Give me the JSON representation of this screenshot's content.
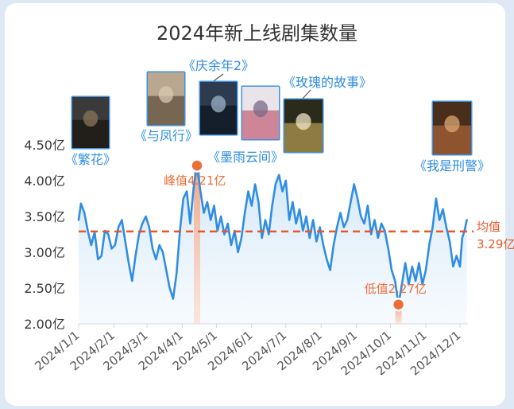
{
  "chart_data": {
    "type": "line",
    "title": "2024年新上线剧集数量",
    "x_ticks": [
      "2024/1/1",
      "2024/2/1",
      "2024/3/1",
      "2024/4/1",
      "2024/5/1",
      "2024/6/1",
      "2024/7/1",
      "2024/8/1",
      "2024/9/1",
      "2024/10/1",
      "2024/11/1",
      "2024/12/1"
    ],
    "y_ticks": [
      "2.00亿",
      "2.50亿",
      "3.00亿",
      "3.50亿",
      "4.00亿",
      "4.50亿"
    ],
    "ylim": [
      2.0,
      4.5
    ],
    "x_range": [
      "2024-01-01",
      "2024-12-08"
    ],
    "series": [
      {
        "color": "#2f8de4",
        "points": [
          [
            "2024-01-01",
            3.45
          ],
          [
            "2024-01-03",
            3.68
          ],
          [
            "2024-01-06",
            3.55
          ],
          [
            "2024-01-09",
            3.3
          ],
          [
            "2024-01-12",
            3.1
          ],
          [
            "2024-01-15",
            3.28
          ],
          [
            "2024-01-18",
            2.9
          ],
          [
            "2024-01-21",
            2.95
          ],
          [
            "2024-01-24",
            3.3
          ],
          [
            "2024-01-27",
            3.25
          ],
          [
            "2024-01-30",
            3.05
          ],
          [
            "2024-02-02",
            3.1
          ],
          [
            "2024-02-05",
            3.35
          ],
          [
            "2024-02-08",
            3.45
          ],
          [
            "2024-02-11",
            3.15
          ],
          [
            "2024-02-14",
            2.85
          ],
          [
            "2024-02-17",
            2.6
          ],
          [
            "2024-02-20",
            2.95
          ],
          [
            "2024-02-23",
            3.25
          ],
          [
            "2024-02-26",
            3.4
          ],
          [
            "2024-02-29",
            3.5
          ],
          [
            "2024-03-03",
            3.35
          ],
          [
            "2024-03-06",
            3.05
          ],
          [
            "2024-03-09",
            2.9
          ],
          [
            "2024-03-12",
            3.1
          ],
          [
            "2024-03-15",
            3.0
          ],
          [
            "2024-03-18",
            2.75
          ],
          [
            "2024-03-21",
            2.5
          ],
          [
            "2024-03-24",
            2.35
          ],
          [
            "2024-03-27",
            2.7
          ],
          [
            "2024-03-30",
            3.3
          ],
          [
            "2024-04-02",
            3.75
          ],
          [
            "2024-04-05",
            3.85
          ],
          [
            "2024-04-08",
            3.4
          ],
          [
            "2024-04-11",
            3.9
          ],
          [
            "2024-04-14",
            4.21
          ],
          [
            "2024-04-17",
            3.85
          ],
          [
            "2024-04-20",
            3.55
          ],
          [
            "2024-04-23",
            3.7
          ],
          [
            "2024-04-26",
            3.45
          ],
          [
            "2024-04-29",
            3.65
          ],
          [
            "2024-05-02",
            3.3
          ],
          [
            "2024-05-05",
            3.5
          ],
          [
            "2024-05-08",
            3.25
          ],
          [
            "2024-05-11",
            3.4
          ],
          [
            "2024-05-14",
            3.1
          ],
          [
            "2024-05-17",
            3.3
          ],
          [
            "2024-05-20",
            3.0
          ],
          [
            "2024-05-23",
            3.2
          ],
          [
            "2024-05-26",
            3.55
          ],
          [
            "2024-05-29",
            3.85
          ],
          [
            "2024-06-01",
            3.65
          ],
          [
            "2024-06-04",
            3.95
          ],
          [
            "2024-06-07",
            3.7
          ],
          [
            "2024-06-10",
            3.2
          ],
          [
            "2024-06-13",
            3.45
          ],
          [
            "2024-06-16",
            3.25
          ],
          [
            "2024-06-19",
            3.65
          ],
          [
            "2024-06-22",
            3.95
          ],
          [
            "2024-06-25",
            4.08
          ],
          [
            "2024-06-28",
            3.85
          ],
          [
            "2024-07-01",
            4.0
          ],
          [
            "2024-07-04",
            3.45
          ],
          [
            "2024-07-07",
            3.7
          ],
          [
            "2024-07-10",
            3.4
          ],
          [
            "2024-07-13",
            3.6
          ],
          [
            "2024-07-16",
            3.3
          ],
          [
            "2024-07-19",
            3.5
          ],
          [
            "2024-07-22",
            3.2
          ],
          [
            "2024-07-25",
            3.45
          ],
          [
            "2024-07-28",
            3.15
          ],
          [
            "2024-07-31",
            3.35
          ],
          [
            "2024-08-03",
            3.1
          ],
          [
            "2024-08-06",
            2.9
          ],
          [
            "2024-08-09",
            2.75
          ],
          [
            "2024-08-12",
            3.1
          ],
          [
            "2024-08-15",
            3.35
          ],
          [
            "2024-08-18",
            3.55
          ],
          [
            "2024-08-21",
            3.35
          ],
          [
            "2024-08-24",
            3.45
          ],
          [
            "2024-08-27",
            3.7
          ],
          [
            "2024-08-30",
            3.95
          ],
          [
            "2024-09-02",
            3.75
          ],
          [
            "2024-09-05",
            3.5
          ],
          [
            "2024-09-08",
            3.4
          ],
          [
            "2024-09-11",
            3.65
          ],
          [
            "2024-09-14",
            3.25
          ],
          [
            "2024-09-17",
            3.45
          ],
          [
            "2024-09-20",
            3.2
          ],
          [
            "2024-09-23",
            3.4
          ],
          [
            "2024-09-26",
            3.3
          ],
          [
            "2024-09-29",
            3.05
          ],
          [
            "2024-10-02",
            2.75
          ],
          [
            "2024-10-05",
            2.6
          ],
          [
            "2024-10-08",
            2.27
          ],
          [
            "2024-10-11",
            2.55
          ],
          [
            "2024-10-14",
            2.85
          ],
          [
            "2024-10-17",
            2.55
          ],
          [
            "2024-10-20",
            2.8
          ],
          [
            "2024-10-23",
            2.6
          ],
          [
            "2024-10-26",
            2.85
          ],
          [
            "2024-10-29",
            2.55
          ],
          [
            "2024-11-01",
            2.75
          ],
          [
            "2024-11-04",
            3.1
          ],
          [
            "2024-11-07",
            3.35
          ],
          [
            "2024-11-10",
            3.75
          ],
          [
            "2024-11-13",
            3.45
          ],
          [
            "2024-11-16",
            3.6
          ],
          [
            "2024-11-19",
            3.35
          ],
          [
            "2024-11-22",
            3.15
          ],
          [
            "2024-11-25",
            2.8
          ],
          [
            "2024-11-28",
            2.95
          ],
          [
            "2024-12-01",
            2.8
          ],
          [
            "2024-12-03",
            3.2
          ],
          [
            "2024-12-05",
            3.3
          ],
          [
            "2024-12-07",
            3.45
          ]
        ]
      }
    ],
    "average": {
      "value": 3.29,
      "label_1": "均值",
      "label_2": "3.29亿",
      "color": "#e8582a"
    },
    "peak": {
      "date": "2024-04-14",
      "value": 4.21,
      "label": "峰值4.21亿",
      "color": "#ec6f3a"
    },
    "trough": {
      "date": "2024-10-08",
      "value": 2.27,
      "label": "低值2.27亿",
      "color": "#ec6f3a"
    },
    "annotations": [
      {
        "id": "fanhua",
        "label": "《繁花》",
        "date": "2024-01-06"
      },
      {
        "id": "yufengxing",
        "label": "《与凤行》",
        "date": "2024-03-18"
      },
      {
        "id": "qingyunian2",
        "label": "《庆余年2》",
        "date": "2024-05-16"
      },
      {
        "id": "moyuyunjian",
        "label": "《墨雨云间》",
        "date": "2024-06-12"
      },
      {
        "id": "meigui",
        "label": "《玫瑰的故事》",
        "date": "2024-07-08"
      },
      {
        "id": "woshixingjing",
        "label": "《我是刑警》",
        "date": "2024-12-02"
      }
    ],
    "label_color": "#2f8de4",
    "area_color": "#c9e2f7"
  }
}
